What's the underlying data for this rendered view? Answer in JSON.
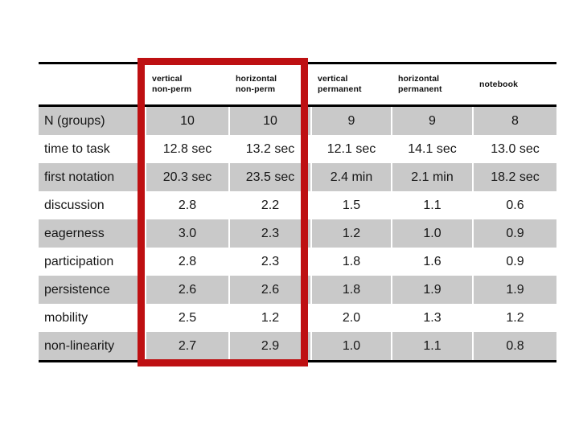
{
  "slide": {
    "background_color": "#ffffff"
  },
  "table": {
    "columns": [
      "vertical\nnon-perm",
      "horizontal\nnon-perm",
      "vertical\npermanent",
      "horizontal\npermanent",
      "notebook"
    ],
    "rows": [
      {
        "label": "N (groups)",
        "values": [
          "10",
          "10",
          "9",
          "9",
          "8"
        ]
      },
      {
        "label": "time to task",
        "values": [
          "12.8 sec",
          "13.2 sec",
          "12.1 sec",
          "14.1 sec",
          "13.0 sec"
        ]
      },
      {
        "label": "first notation",
        "values": [
          "20.3 sec",
          "23.5 sec",
          "2.4 min",
          "2.1 min",
          "18.2 sec"
        ]
      },
      {
        "label": "discussion",
        "values": [
          "2.8",
          "2.2",
          "1.5",
          "1.1",
          "0.6"
        ]
      },
      {
        "label": "eagerness",
        "values": [
          "3.0",
          "2.3",
          "1.2",
          "1.0",
          "0.9"
        ]
      },
      {
        "label": "participation",
        "values": [
          "2.8",
          "2.3",
          "1.8",
          "1.6",
          "0.9"
        ]
      },
      {
        "label": "persistence",
        "values": [
          "2.6",
          "2.6",
          "1.8",
          "1.9",
          "1.9"
        ]
      },
      {
        "label": "mobility",
        "values": [
          "2.5",
          "1.2",
          "2.0",
          "1.3",
          "1.2"
        ]
      },
      {
        "label": "non-linearity",
        "values": [
          "2.7",
          "2.9",
          "1.0",
          "1.1",
          "0.8"
        ]
      }
    ],
    "colors": {
      "row_shade": "#c9c9c9",
      "rule": "#000000",
      "highlight_frame": "#be1012"
    }
  },
  "highlight": {
    "framed_columns": [
      "vertical non-perm",
      "horizontal non-perm"
    ]
  },
  "chart_data": {
    "type": "table",
    "title": "",
    "columns": [
      "",
      "vertical non-perm",
      "horizontal non-perm",
      "vertical permanent",
      "horizontal permanent",
      "notebook"
    ],
    "rows": [
      [
        "N (groups)",
        "10",
        "10",
        "9",
        "9",
        "8"
      ],
      [
        "time to task",
        "12.8 sec",
        "13.2 sec",
        "12.1 sec",
        "14.1 sec",
        "13.0 sec"
      ],
      [
        "first notation",
        "20.3 sec",
        "23.5 sec",
        "2.4 min",
        "2.1 min",
        "18.2 sec"
      ],
      [
        "discussion",
        "2.8",
        "2.2",
        "1.5",
        "1.1",
        "0.6"
      ],
      [
        "eagerness",
        "3.0",
        "2.3",
        "1.2",
        "1.0",
        "0.9"
      ],
      [
        "participation",
        "2.8",
        "2.3",
        "1.8",
        "1.6",
        "0.9"
      ],
      [
        "persistence",
        "2.6",
        "2.6",
        "1.8",
        "1.9",
        "1.9"
      ],
      [
        "mobility",
        "2.5",
        "1.2",
        "2.0",
        "1.3",
        "1.2"
      ],
      [
        "non-linearity",
        "2.7",
        "2.9",
        "1.0",
        "1.1",
        "0.8"
      ]
    ]
  }
}
